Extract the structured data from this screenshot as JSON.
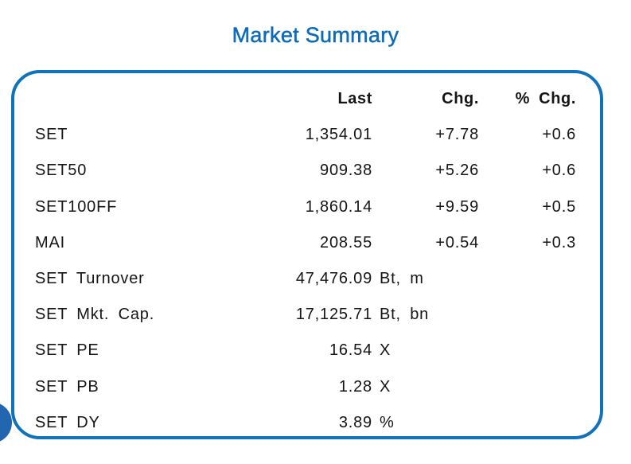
{
  "title": "Market Summary",
  "colors": {
    "accent": "#0d6cba",
    "border": "#1172bc",
    "circle": "#2266b0",
    "text": "#151515"
  },
  "table": {
    "headers": {
      "last": "Last",
      "chg": "Chg.",
      "pct": "% Chg."
    },
    "rows": [
      {
        "label": "SET",
        "last": "1,354.01",
        "suffix": "",
        "chg": "+7.78",
        "pct": "+0.6"
      },
      {
        "label": "SET50",
        "last": "909.38",
        "suffix": "",
        "chg": "+5.26",
        "pct": "+0.6"
      },
      {
        "label": "SET100FF",
        "last": "1,860.14",
        "suffix": "",
        "chg": "+9.59",
        "pct": "+0.5"
      },
      {
        "label": "MAI",
        "last": "208.55",
        "suffix": "",
        "chg": "+0.54",
        "pct": "+0.3"
      },
      {
        "label": "SET Turnover",
        "last": "47,476.09",
        "suffix": "Bt, m",
        "chg": "",
        "pct": ""
      },
      {
        "label": "SET Mkt. Cap.",
        "last": "17,125.71",
        "suffix": "Bt, bn",
        "chg": "",
        "pct": ""
      },
      {
        "label": "SET PE",
        "last": "16.54",
        "suffix": "X",
        "chg": "",
        "pct": ""
      },
      {
        "label": "SET PB",
        "last": "1.28",
        "suffix": "X",
        "chg": "",
        "pct": ""
      },
      {
        "label": "SET DY",
        "last": "3.89",
        "suffix": "%",
        "chg": "",
        "pct": ""
      }
    ]
  },
  "chart_data": {
    "type": "table",
    "title": "Market Summary",
    "columns": [
      "",
      "Last",
      "Chg.",
      "% Chg."
    ],
    "rows": [
      [
        "SET",
        "1,354.01",
        "+7.78",
        "+0.6"
      ],
      [
        "SET50",
        "909.38",
        "+5.26",
        "+0.6"
      ],
      [
        "SET100FF",
        "1,860.14",
        "+9.59",
        "+0.5"
      ],
      [
        "MAI",
        "208.55",
        "+0.54",
        "+0.3"
      ],
      [
        "SET Turnover",
        "47,476.09 Bt, m",
        "",
        ""
      ],
      [
        "SET Mkt. Cap.",
        "17,125.71 Bt, bn",
        "",
        ""
      ],
      [
        "SET PE",
        "16.54 X",
        "",
        ""
      ],
      [
        "SET PB",
        "1.28 X",
        "",
        ""
      ],
      [
        "SET DY",
        "3.89 %",
        "",
        ""
      ]
    ],
    "layout_hints": {
      "value_alignment": "right",
      "header_weight": "bold",
      "card_border_color": "#1172bc"
    }
  }
}
